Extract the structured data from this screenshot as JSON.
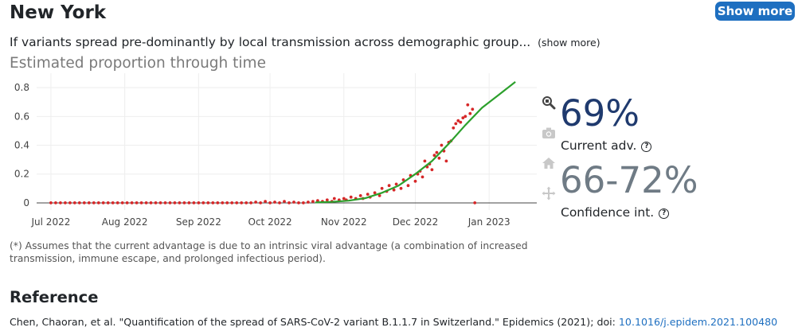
{
  "header": {
    "title": "New York",
    "show_more_label": "Show more"
  },
  "description": {
    "text": "If variants spread pre-dominantly by local transmission across demographic group...",
    "toggle_label": "(show more)"
  },
  "chart_section": {
    "subtitle": "Estimated proportion through time"
  },
  "chart_data": {
    "type": "scatter",
    "title": "",
    "xlabel": "",
    "ylabel": "",
    "x_range": [
      "2022-06-25",
      "2023-01-21"
    ],
    "ylim": [
      -0.05,
      0.9
    ],
    "y_ticks": [
      0,
      0.2,
      0.4,
      0.6,
      0.8
    ],
    "y_tick_labels": [
      "0",
      "0.2",
      "0.4",
      "0.6",
      "0.8"
    ],
    "x_ticks": [
      "2022-07-01",
      "2022-08-01",
      "2022-09-01",
      "2022-10-01",
      "2022-11-01",
      "2022-12-01",
      "2023-01-01"
    ],
    "x_tick_labels": [
      "Jul 2022",
      "Aug 2022",
      "Sep 2022",
      "Oct 2022",
      "Nov 2022",
      "Dec 2022",
      "Jan 2023"
    ],
    "grid": true,
    "series": [
      {
        "type": "scatter",
        "color": "#d62728",
        "points": [
          [
            "2022-07-01",
            0
          ],
          [
            "2022-07-03",
            0
          ],
          [
            "2022-07-05",
            0
          ],
          [
            "2022-07-07",
            0
          ],
          [
            "2022-07-09",
            0
          ],
          [
            "2022-07-11",
            0
          ],
          [
            "2022-07-13",
            0
          ],
          [
            "2022-07-15",
            0
          ],
          [
            "2022-07-17",
            0
          ],
          [
            "2022-07-19",
            0
          ],
          [
            "2022-07-21",
            0
          ],
          [
            "2022-07-23",
            0
          ],
          [
            "2022-07-25",
            0
          ],
          [
            "2022-07-27",
            0
          ],
          [
            "2022-07-29",
            0
          ],
          [
            "2022-07-31",
            0
          ],
          [
            "2022-08-02",
            0
          ],
          [
            "2022-08-04",
            0
          ],
          [
            "2022-08-06",
            0
          ],
          [
            "2022-08-08",
            0
          ],
          [
            "2022-08-10",
            0
          ],
          [
            "2022-08-12",
            0
          ],
          [
            "2022-08-14",
            0
          ],
          [
            "2022-08-16",
            0
          ],
          [
            "2022-08-18",
            0
          ],
          [
            "2022-08-20",
            0
          ],
          [
            "2022-08-22",
            0
          ],
          [
            "2022-08-24",
            0
          ],
          [
            "2022-08-26",
            0
          ],
          [
            "2022-08-28",
            0
          ],
          [
            "2022-08-30",
            0
          ],
          [
            "2022-09-01",
            0
          ],
          [
            "2022-09-03",
            0
          ],
          [
            "2022-09-05",
            0
          ],
          [
            "2022-09-07",
            0
          ],
          [
            "2022-09-09",
            0
          ],
          [
            "2022-09-11",
            0
          ],
          [
            "2022-09-13",
            0
          ],
          [
            "2022-09-15",
            0
          ],
          [
            "2022-09-17",
            0
          ],
          [
            "2022-09-19",
            0
          ],
          [
            "2022-09-21",
            0
          ],
          [
            "2022-09-23",
            0
          ],
          [
            "2022-09-25",
            0.005
          ],
          [
            "2022-09-27",
            0
          ],
          [
            "2022-09-29",
            0.01
          ],
          [
            "2022-10-01",
            0
          ],
          [
            "2022-10-03",
            0.005
          ],
          [
            "2022-10-05",
            0
          ],
          [
            "2022-10-07",
            0.01
          ],
          [
            "2022-10-09",
            0
          ],
          [
            "2022-10-11",
            0.005
          ],
          [
            "2022-10-13",
            0
          ],
          [
            "2022-10-15",
            0
          ],
          [
            "2022-10-17",
            0.005
          ],
          [
            "2022-10-19",
            0.01
          ],
          [
            "2022-10-21",
            0.015
          ],
          [
            "2022-10-23",
            0.01
          ],
          [
            "2022-10-25",
            0.02
          ],
          [
            "2022-10-27",
            0.01
          ],
          [
            "2022-10-28",
            0.03
          ],
          [
            "2022-10-30",
            0.02
          ],
          [
            "2022-11-01",
            0.03
          ],
          [
            "2022-11-02",
            0.02
          ],
          [
            "2022-11-04",
            0.04
          ],
          [
            "2022-11-06",
            0.03
          ],
          [
            "2022-11-08",
            0.05
          ],
          [
            "2022-11-09",
            0.03
          ],
          [
            "2022-11-11",
            0.06
          ],
          [
            "2022-11-12",
            0.04
          ],
          [
            "2022-11-14",
            0.07
          ],
          [
            "2022-11-16",
            0.05
          ],
          [
            "2022-11-17",
            0.1
          ],
          [
            "2022-11-19",
            0.08
          ],
          [
            "2022-11-20",
            0.12
          ],
          [
            "2022-11-22",
            0.09
          ],
          [
            "2022-11-23",
            0.13
          ],
          [
            "2022-11-25",
            0.1
          ],
          [
            "2022-11-26",
            0.16
          ],
          [
            "2022-11-28",
            0.12
          ],
          [
            "2022-11-29",
            0.19
          ],
          [
            "2022-12-01",
            0.15
          ],
          [
            "2022-12-02",
            0.2
          ],
          [
            "2022-12-03",
            0.22
          ],
          [
            "2022-12-04",
            0.18
          ],
          [
            "2022-12-05",
            0.29
          ],
          [
            "2022-12-06",
            0.25
          ],
          [
            "2022-12-07",
            0.27
          ],
          [
            "2022-12-08",
            0.23
          ],
          [
            "2022-12-09",
            0.33
          ],
          [
            "2022-12-10",
            0.35
          ],
          [
            "2022-12-11",
            0.31
          ],
          [
            "2022-12-12",
            0.4
          ],
          [
            "2022-12-13",
            0.36
          ],
          [
            "2022-12-14",
            0.29
          ],
          [
            "2022-12-15",
            0.42
          ],
          [
            "2022-12-16",
            0.43
          ],
          [
            "2022-12-17",
            0.52
          ],
          [
            "2022-12-18",
            0.55
          ],
          [
            "2022-12-19",
            0.57
          ],
          [
            "2022-12-20",
            0.56
          ],
          [
            "2022-12-21",
            0.59
          ],
          [
            "2022-12-22",
            0.6
          ],
          [
            "2022-12-23",
            0.68
          ],
          [
            "2022-12-24",
            0.62
          ],
          [
            "2022-12-25",
            0.65
          ],
          [
            "2022-12-26",
            0
          ]
        ]
      },
      {
        "type": "line",
        "color": "#2ca02c",
        "points": [
          [
            "2022-10-20",
            0.003
          ],
          [
            "2022-10-27",
            0.007
          ],
          [
            "2022-11-03",
            0.015
          ],
          [
            "2022-11-10",
            0.033
          ],
          [
            "2022-11-17",
            0.07
          ],
          [
            "2022-11-24",
            0.12
          ],
          [
            "2022-12-01",
            0.2
          ],
          [
            "2022-12-08",
            0.29
          ],
          [
            "2022-12-15",
            0.41
          ],
          [
            "2022-12-22",
            0.54
          ],
          [
            "2022-12-29",
            0.66
          ],
          [
            "2023-01-05",
            0.75
          ],
          [
            "2023-01-12",
            0.84
          ]
        ]
      }
    ]
  },
  "stats": {
    "current_advantage": "69%",
    "current_advantage_label": "Current adv.",
    "confidence_interval": "66-72%",
    "confidence_interval_label": "Confidence int.",
    "help_glyph": "?"
  },
  "modebar": [
    "zoom-icon",
    "camera-icon",
    "home-icon",
    "pan-icon"
  ],
  "footnote": "(*) Assumes that the current advantage is due to an intrinsic viral advantage (a combination of increased transmission, immune escape, and prolonged infectious period).",
  "reference": {
    "heading": "Reference",
    "citation": "Chen, Chaoran, et al. \"Quantification of the spread of SARS-CoV-2 variant B.1.1.7 in Switzerland.\" Epidemics (2021); doi:",
    "doi_link": "10.1016/j.epidem.2021.100480"
  }
}
